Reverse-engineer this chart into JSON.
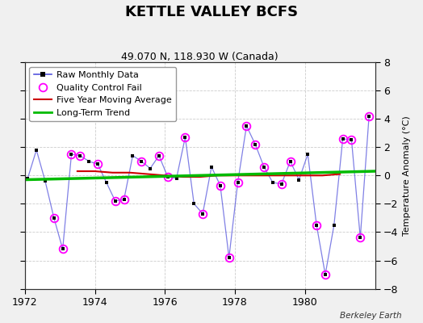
{
  "title": "KETTLE VALLEY BCFS",
  "subtitle": "49.070 N, 118.930 W (Canada)",
  "ylabel": "Temperature Anomaly (°C)",
  "credit": "Berkeley Earth",
  "ylim": [
    -8,
    8
  ],
  "xlim": [
    1972,
    1982
  ],
  "xticks": [
    1972,
    1974,
    1976,
    1978,
    1980
  ],
  "yticks": [
    -8,
    -6,
    -4,
    -2,
    0,
    2,
    4,
    6,
    8
  ],
  "bg_color": "#f0f0f0",
  "plot_bg_color": "#ffffff",
  "raw_x": [
    1972.08,
    1972.33,
    1972.58,
    1972.83,
    1973.08,
    1973.33,
    1973.58,
    1973.83,
    1974.08,
    1974.33,
    1974.58,
    1974.83,
    1975.08,
    1975.33,
    1975.58,
    1975.83,
    1976.08,
    1976.33,
    1976.58,
    1976.83,
    1977.08,
    1977.33,
    1977.58,
    1977.83,
    1978.08,
    1978.33,
    1978.58,
    1978.83,
    1979.08,
    1979.33,
    1979.58,
    1979.83,
    1980.08,
    1980.33,
    1980.58,
    1980.83,
    1981.08,
    1981.33,
    1981.58,
    1981.83
  ],
  "raw_y": [
    -0.2,
    1.8,
    -0.4,
    -3.0,
    -5.2,
    1.5,
    1.4,
    1.0,
    0.8,
    -0.5,
    -1.8,
    -1.7,
    1.4,
    1.0,
    0.5,
    1.4,
    -0.1,
    -0.2,
    2.7,
    -2.0,
    -2.7,
    0.6,
    -0.7,
    -5.8,
    -0.5,
    3.5,
    2.2,
    0.6,
    -0.5,
    -0.6,
    1.0,
    -0.3,
    1.5,
    -3.5,
    -7.0,
    -3.5,
    2.6,
    2.5,
    -4.4,
    4.2
  ],
  "qc_fail_x": [
    1972.83,
    1973.08,
    1973.33,
    1973.58,
    1974.08,
    1974.58,
    1974.83,
    1975.33,
    1975.83,
    1976.08,
    1976.58,
    1977.08,
    1977.58,
    1977.83,
    1978.08,
    1978.33,
    1978.58,
    1978.83,
    1979.33,
    1979.58,
    1980.33,
    1980.58,
    1981.08,
    1981.33,
    1981.58,
    1981.83
  ],
  "qc_fail_y": [
    -3.0,
    -5.2,
    1.5,
    1.4,
    0.8,
    -1.8,
    -1.7,
    1.0,
    1.4,
    -0.1,
    2.7,
    -2.7,
    -0.7,
    -5.8,
    -0.5,
    3.5,
    2.2,
    0.6,
    -0.6,
    1.0,
    -3.5,
    -7.0,
    2.6,
    2.5,
    -4.4,
    4.2
  ],
  "trend_x": [
    1972.0,
    1982.0
  ],
  "trend_y": [
    -0.3,
    0.3
  ],
  "moving_avg_x": [
    1973.5,
    1974.0,
    1974.5,
    1975.0,
    1975.5,
    1976.0,
    1976.5,
    1977.0,
    1977.5,
    1978.0,
    1978.5,
    1979.0,
    1979.5,
    1980.0,
    1980.5,
    1981.0
  ],
  "moving_avg_y": [
    0.3,
    0.3,
    0.2,
    0.2,
    0.1,
    0.0,
    -0.1,
    -0.1,
    0.0,
    0.0,
    0.0,
    0.0,
    0.0,
    0.0,
    0.0,
    0.1
  ],
  "line_color": "#5555dd",
  "marker_color": "#000000",
  "qc_color": "#ff00ff",
  "trend_color": "#00bb00",
  "moving_avg_color": "#cc0000",
  "grid_color": "#cccccc",
  "title_fontsize": 13,
  "subtitle_fontsize": 9,
  "label_fontsize": 8,
  "tick_fontsize": 9,
  "legend_fontsize": 8
}
